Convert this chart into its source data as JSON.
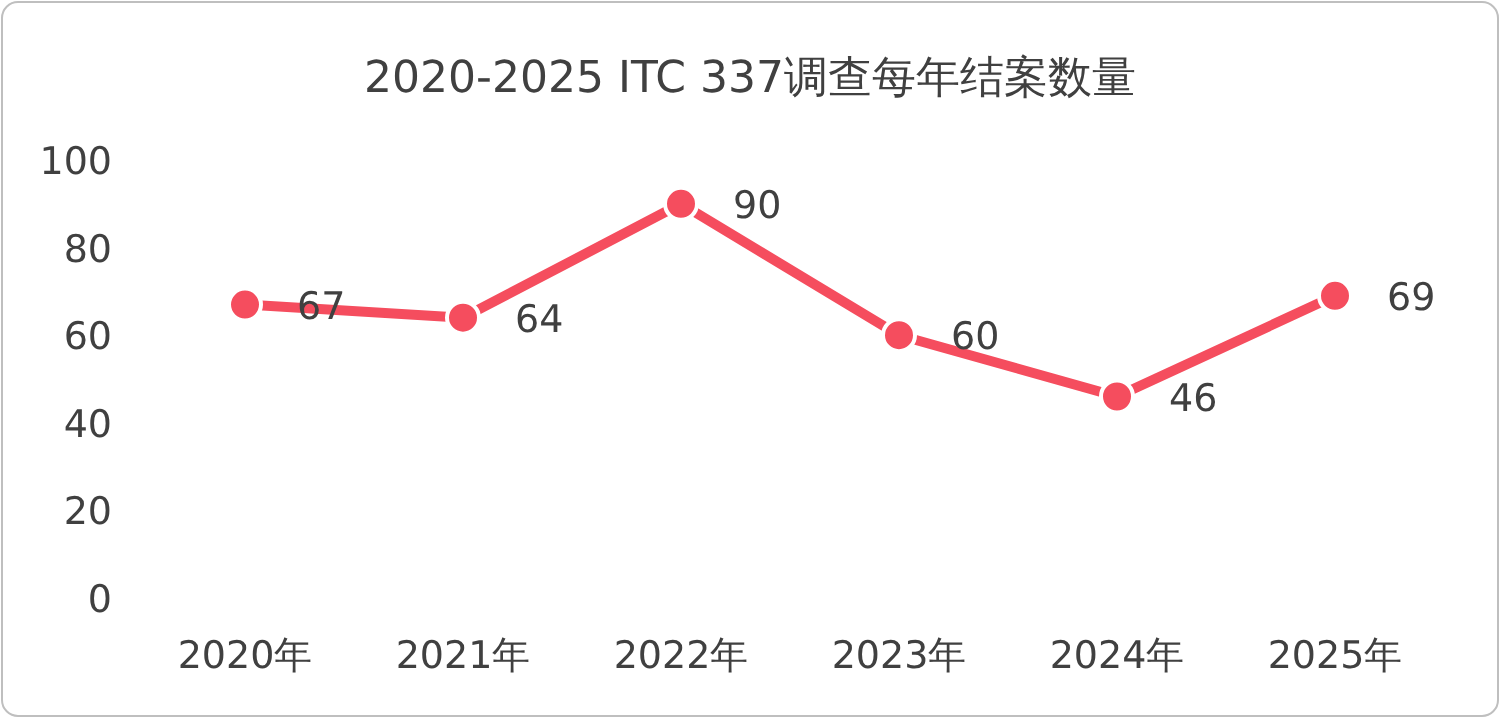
{
  "chart_data": {
    "type": "line",
    "title": "2020-2025 ITC 337调查每年结案数量",
    "categories": [
      "2020年",
      "2021年",
      "2022年",
      "2023年",
      "2024年",
      "2025年"
    ],
    "values": [
      67,
      64,
      90,
      60,
      46,
      69
    ],
    "color": "#f54d5e",
    "ylim": [
      0,
      100
    ],
    "yticks": [
      0,
      20,
      40,
      60,
      80,
      100
    ],
    "data_labels": true,
    "marker": "circle",
    "line_style": "solid"
  }
}
